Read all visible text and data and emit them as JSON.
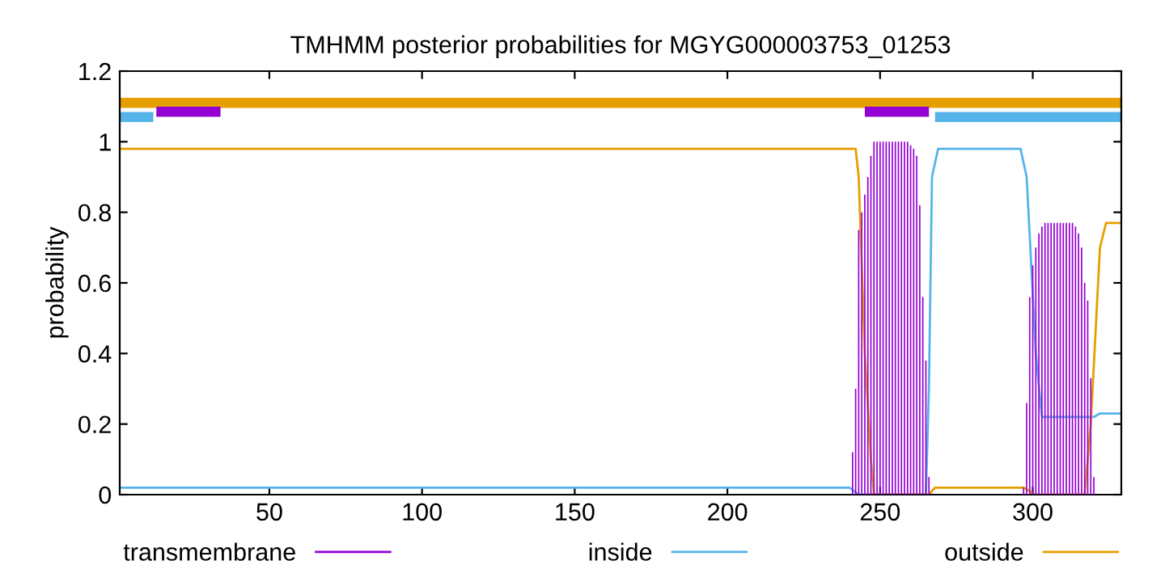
{
  "chart_data": {
    "type": "line",
    "title": "TMHMM posterior probabilities for MGYG000003753_01253",
    "ylabel": "probability",
    "xlim": [
      1,
      329
    ],
    "ylim": [
      0,
      1.2
    ],
    "xticks": [
      50,
      100,
      150,
      200,
      250,
      300
    ],
    "yticks": [
      0,
      0.2,
      0.4,
      0.6,
      0.8,
      1,
      1.2
    ],
    "grid": false,
    "legend": "bottom",
    "series": [
      {
        "name": "transmembrane",
        "type": "bar",
        "color": "#9400d3",
        "x": [
          241,
          242,
          243,
          244,
          245,
          246,
          247,
          248,
          249,
          250,
          251,
          252,
          253,
          254,
          255,
          256,
          257,
          258,
          259,
          260,
          261,
          262,
          263,
          264,
          265,
          266,
          297,
          298,
          299,
          300,
          301,
          302,
          303,
          304,
          305,
          306,
          307,
          308,
          309,
          310,
          311,
          312,
          313,
          314,
          315,
          316,
          317,
          318,
          319,
          320
        ],
        "values": [
          0.12,
          0.3,
          0.75,
          0.8,
          0.85,
          0.9,
          0.96,
          1,
          1,
          1,
          1,
          1,
          1,
          1,
          1,
          1,
          1,
          1,
          1,
          0.99,
          0.98,
          0.96,
          0.82,
          0.56,
          0.38,
          0.05,
          0.02,
          0.26,
          0.56,
          0.65,
          0.7,
          0.74,
          0.76,
          0.77,
          0.77,
          0.77,
          0.77,
          0.77,
          0.77,
          0.77,
          0.77,
          0.77,
          0.77,
          0.76,
          0.74,
          0.7,
          0.6,
          0.55,
          0.33,
          0.05
        ]
      },
      {
        "name": "inside",
        "color": "#56b4e9",
        "x": [
          1,
          100,
          200,
          240,
          243,
          265,
          266,
          267,
          269,
          296,
          298,
          301,
          303,
          320,
          322,
          329
        ],
        "values": [
          0.02,
          0.02,
          0.02,
          0.02,
          0,
          0,
          0.3,
          0.9,
          0.98,
          0.98,
          0.9,
          0.4,
          0.22,
          0.22,
          0.23,
          0.23
        ]
      },
      {
        "name": "outside",
        "color": "#e69f00",
        "x": [
          1,
          100,
          200,
          242,
          243,
          245,
          247,
          248,
          266,
          268,
          297,
          299,
          300,
          317,
          319,
          322,
          324,
          329
        ],
        "values": [
          0.98,
          0.98,
          0.98,
          0.98,
          0.9,
          0.4,
          0.1,
          0,
          0,
          0.02,
          0.02,
          0.01,
          0,
          0,
          0.2,
          0.7,
          0.77,
          0.77
        ]
      },
      {
        "color": "#e69f00",
        "x": [
          1,
          329
        ],
        "values": [
          1.11,
          1.11
        ]
      },
      {
        "color": "#56b4e9",
        "x": [
          1,
          12,
          null,
          268,
          329
        ],
        "values": [
          1.07,
          1.07,
          null,
          1.07,
          1.07
        ]
      },
      {
        "color": "#9400d3",
        "x": [
          13,
          34,
          null,
          245,
          266
        ],
        "values": [
          1.085,
          1.085,
          null,
          1.085,
          1.085
        ]
      }
    ]
  }
}
